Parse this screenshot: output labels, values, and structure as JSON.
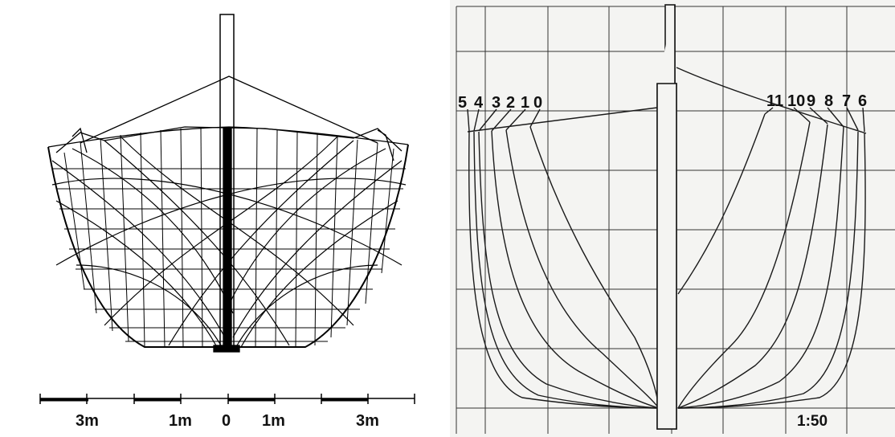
{
  "left_drawing": {
    "scale_labels": [
      "3m",
      "1m",
      "0",
      "1m",
      "3m"
    ]
  },
  "right_drawing": {
    "station_labels_left": [
      "5",
      "4",
      "3",
      "2",
      "1",
      "0"
    ],
    "station_labels_right": [
      "11",
      "10",
      "9",
      "8",
      "7",
      "6"
    ],
    "scale_text": "1:50",
    "background_color": "#f4f4f2",
    "line_color": "#1a1a1a"
  }
}
